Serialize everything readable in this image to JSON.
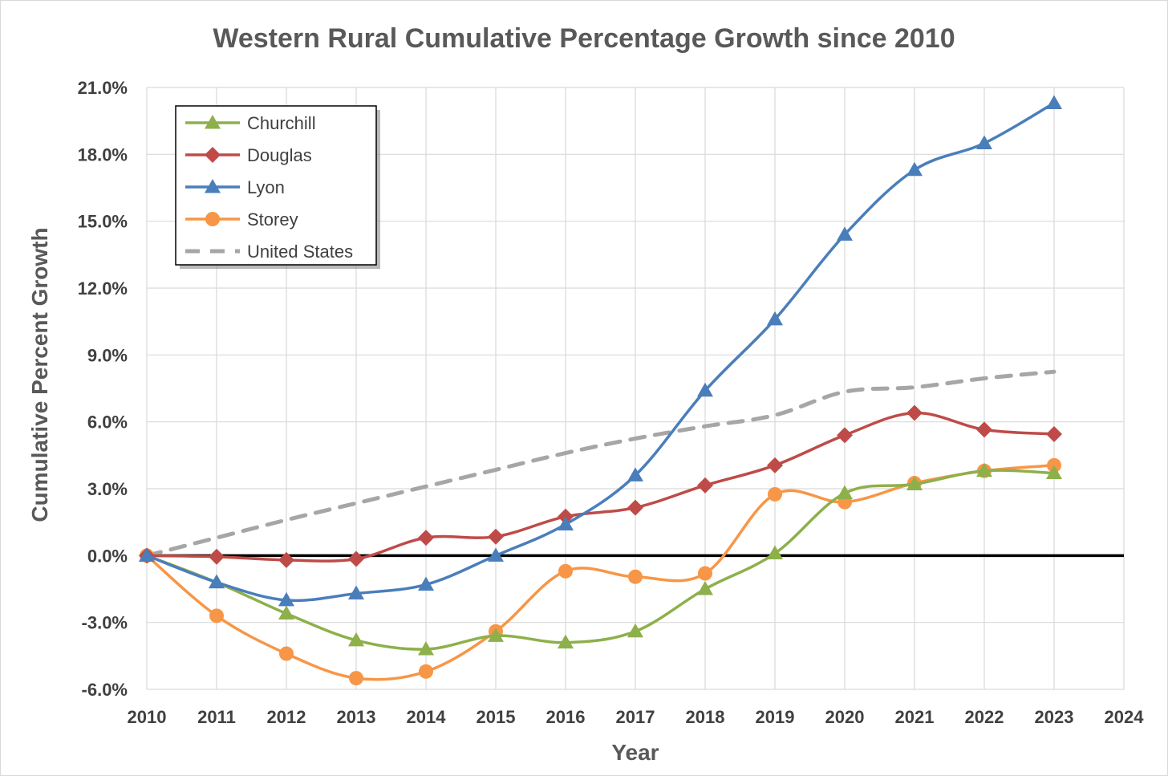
{
  "chart_data": {
    "type": "line",
    "title": "Western Rural Cumulative Percentage Growth since 2010",
    "xlabel": "Year",
    "ylabel": "Cumulative Percent Growth",
    "xlim": [
      2010,
      2024
    ],
    "ylim": [
      -6.0,
      21.0
    ],
    "x_ticks": [
      "2010",
      "2011",
      "2012",
      "2013",
      "2014",
      "2015",
      "2016",
      "2017",
      "2018",
      "2019",
      "2020",
      "2021",
      "2022",
      "2023",
      "2024"
    ],
    "y_ticks": [
      "-6.0%",
      "-3.0%",
      "0.0%",
      "3.0%",
      "6.0%",
      "9.0%",
      "12.0%",
      "15.0%",
      "18.0%",
      "21.0%"
    ],
    "y_tick_values": [
      -6,
      -3,
      0,
      3,
      6,
      9,
      12,
      15,
      18,
      21
    ],
    "grid": true,
    "legend_position": "top-left",
    "zero_line_color": "#000000",
    "x": [
      2010,
      2011,
      2012,
      2013,
      2014,
      2015,
      2016,
      2017,
      2018,
      2019,
      2020,
      2021,
      2022,
      2023
    ],
    "series": [
      {
        "name": "Churchill",
        "color": "#8db04b",
        "marker": "triangle",
        "dashed": false,
        "values": [
          0.0,
          -1.2,
          -2.6,
          -3.8,
          -4.2,
          -3.6,
          -3.9,
          -3.4,
          -1.5,
          0.1,
          2.8,
          3.2,
          3.8,
          3.7
        ]
      },
      {
        "name": "Douglas",
        "color": "#be4b48",
        "marker": "diamond",
        "dashed": false,
        "values": [
          0.0,
          -0.05,
          -0.2,
          -0.15,
          0.8,
          0.85,
          1.75,
          2.15,
          3.15,
          4.05,
          5.4,
          6.4,
          5.65,
          5.45
        ]
      },
      {
        "name": "Lyon",
        "color": "#4a7ebb",
        "marker": "triangle",
        "dashed": false,
        "values": [
          0.0,
          -1.2,
          -2.0,
          -1.7,
          -1.3,
          0.0,
          1.4,
          3.6,
          7.4,
          10.6,
          14.4,
          17.3,
          18.5,
          20.3
        ]
      },
      {
        "name": "Storey",
        "color": "#f79646",
        "marker": "circle",
        "dashed": false,
        "values": [
          0.0,
          -2.7,
          -4.4,
          -5.5,
          -5.2,
          -3.4,
          -0.7,
          -0.95,
          -0.8,
          2.75,
          2.4,
          3.25,
          3.8,
          4.05
        ]
      },
      {
        "name": "United States",
        "color": "#a6a6a6",
        "marker": "none",
        "dashed": true,
        "values": [
          0.0,
          0.8,
          1.6,
          2.35,
          3.1,
          3.85,
          4.6,
          5.25,
          5.8,
          6.3,
          7.35,
          7.55,
          7.95,
          8.25
        ]
      }
    ]
  }
}
